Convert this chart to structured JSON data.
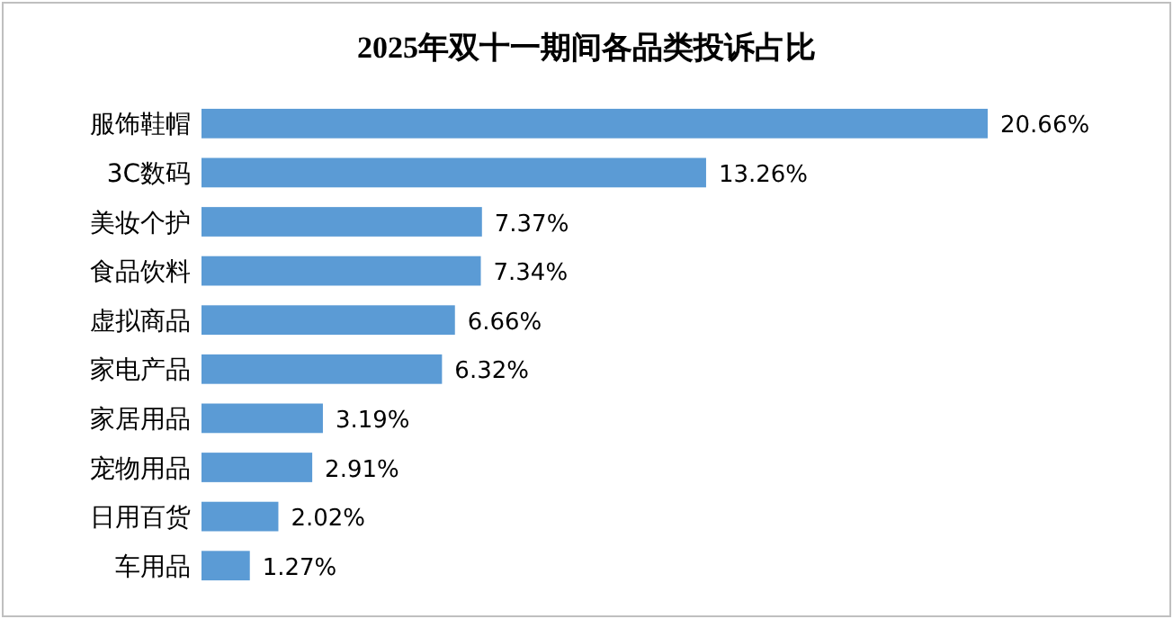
{
  "chart_data": {
    "type": "bar",
    "orientation": "horizontal",
    "title": "2025年双十一期间各品类投诉占比",
    "categories": [
      "服饰鞋帽",
      "3C数码",
      "美妆个护",
      "食品饮料",
      "虚拟商品",
      "家电产品",
      "家居用品",
      "宠物用品",
      "日用百货",
      "车用品"
    ],
    "values": [
      20.66,
      13.26,
      7.37,
      7.34,
      6.66,
      6.32,
      3.19,
      2.91,
      2.02,
      1.27
    ],
    "value_labels": [
      "20.66%",
      "13.26%",
      "7.37%",
      "7.34%",
      "6.66%",
      "6.32%",
      "3.19%",
      "2.91%",
      "2.02%",
      "1.27%"
    ],
    "color": "#5b9bd5"
  }
}
